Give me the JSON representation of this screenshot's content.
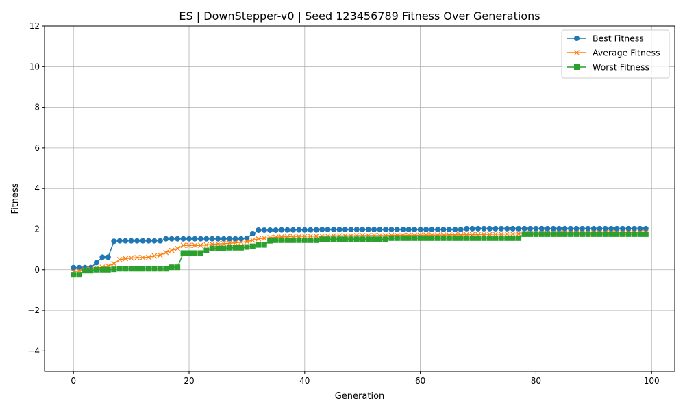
{
  "chart_data": {
    "type": "line",
    "title": "ES | DownStepper-v0 | Seed 123456789 Fitness Over Generations",
    "xlabel": "Generation",
    "ylabel": "Fitness",
    "xlim": [
      -5,
      104
    ],
    "ylim": [
      -5,
      12
    ],
    "xticks": [
      0,
      20,
      40,
      60,
      80,
      100
    ],
    "yticks": [
      -4,
      -2,
      0,
      2,
      4,
      6,
      8,
      10,
      12
    ],
    "grid": true,
    "legend_position": "top-right",
    "x": [
      0,
      1,
      2,
      3,
      4,
      5,
      6,
      7,
      8,
      9,
      10,
      11,
      12,
      13,
      14,
      15,
      16,
      17,
      18,
      19,
      20,
      21,
      22,
      23,
      24,
      25,
      26,
      27,
      28,
      29,
      30,
      31,
      32,
      33,
      34,
      35,
      36,
      37,
      38,
      39,
      40,
      41,
      42,
      43,
      44,
      45,
      46,
      47,
      48,
      49,
      50,
      51,
      52,
      53,
      54,
      55,
      56,
      57,
      58,
      59,
      60,
      61,
      62,
      63,
      64,
      65,
      66,
      67,
      68,
      69,
      70,
      71,
      72,
      73,
      74,
      75,
      76,
      77,
      78,
      79,
      80,
      81,
      82,
      83,
      84,
      85,
      86,
      87,
      88,
      89,
      90,
      91,
      92,
      93,
      94,
      95,
      96,
      97,
      98,
      99
    ],
    "series": [
      {
        "name": "Best Fitness",
        "color": "#1f77b4",
        "marker": "circle",
        "values": [
          0.1,
          0.1,
          0.1,
          0.1,
          0.35,
          0.62,
          0.62,
          1.4,
          1.42,
          1.42,
          1.42,
          1.42,
          1.42,
          1.42,
          1.42,
          1.42,
          1.52,
          1.52,
          1.52,
          1.52,
          1.52,
          1.52,
          1.52,
          1.52,
          1.52,
          1.52,
          1.52,
          1.52,
          1.52,
          1.52,
          1.55,
          1.78,
          1.95,
          1.95,
          1.95,
          1.95,
          1.96,
          1.96,
          1.96,
          1.96,
          1.96,
          1.96,
          1.96,
          1.98,
          1.98,
          1.98,
          1.98,
          1.98,
          1.98,
          1.98,
          1.98,
          1.98,
          1.98,
          1.98,
          1.98,
          1.98,
          1.98,
          1.98,
          1.98,
          1.98,
          1.98,
          1.98,
          1.98,
          1.98,
          1.98,
          1.98,
          1.98,
          1.98,
          2.02,
          2.02,
          2.02,
          2.02,
          2.02,
          2.02,
          2.02,
          2.02,
          2.02,
          2.02,
          2.02,
          2.02,
          2.02,
          2.02,
          2.02,
          2.02,
          2.02,
          2.02,
          2.02,
          2.02,
          2.02,
          2.02,
          2.02,
          2.02,
          2.02,
          2.02,
          2.02,
          2.02,
          2.02,
          2.02,
          2.02,
          2.02
        ]
      },
      {
        "name": "Average Fitness",
        "color": "#ff7f0e",
        "marker": "x",
        "values": [
          -0.1,
          -0.05,
          0.0,
          0.02,
          0.08,
          0.12,
          0.18,
          0.3,
          0.5,
          0.55,
          0.58,
          0.6,
          0.6,
          0.62,
          0.68,
          0.72,
          0.85,
          0.95,
          1.05,
          1.2,
          1.2,
          1.2,
          1.2,
          1.22,
          1.25,
          1.27,
          1.28,
          1.3,
          1.32,
          1.35,
          1.38,
          1.45,
          1.52,
          1.55,
          1.58,
          1.6,
          1.62,
          1.63,
          1.64,
          1.64,
          1.65,
          1.65,
          1.65,
          1.66,
          1.66,
          1.67,
          1.67,
          1.67,
          1.67,
          1.68,
          1.68,
          1.68,
          1.68,
          1.68,
          1.68,
          1.7,
          1.7,
          1.7,
          1.7,
          1.7,
          1.7,
          1.71,
          1.71,
          1.71,
          1.71,
          1.72,
          1.72,
          1.72,
          1.73,
          1.73,
          1.73,
          1.74,
          1.74,
          1.75,
          1.75,
          1.76,
          1.76,
          1.77,
          1.78,
          1.8,
          1.8,
          1.8,
          1.8,
          1.8,
          1.8,
          1.81,
          1.81,
          1.81,
          1.81,
          1.81,
          1.82,
          1.82,
          1.82,
          1.82,
          1.82,
          1.82,
          1.83,
          1.83,
          1.83,
          1.83
        ]
      },
      {
        "name": "Worst Fitness",
        "color": "#2ca02c",
        "marker": "square",
        "values": [
          -0.25,
          -0.25,
          -0.05,
          -0.05,
          0.0,
          0.0,
          0.0,
          0.02,
          0.05,
          0.05,
          0.05,
          0.05,
          0.05,
          0.05,
          0.05,
          0.05,
          0.05,
          0.12,
          0.12,
          0.82,
          0.82,
          0.82,
          0.82,
          0.95,
          1.05,
          1.05,
          1.05,
          1.08,
          1.08,
          1.08,
          1.12,
          1.15,
          1.22,
          1.22,
          1.42,
          1.45,
          1.45,
          1.45,
          1.45,
          1.45,
          1.45,
          1.45,
          1.45,
          1.5,
          1.5,
          1.5,
          1.5,
          1.5,
          1.5,
          1.5,
          1.5,
          1.5,
          1.5,
          1.5,
          1.5,
          1.55,
          1.55,
          1.55,
          1.55,
          1.55,
          1.55,
          1.55,
          1.55,
          1.55,
          1.55,
          1.55,
          1.55,
          1.55,
          1.55,
          1.55,
          1.55,
          1.55,
          1.55,
          1.55,
          1.55,
          1.55,
          1.55,
          1.55,
          1.75,
          1.75,
          1.75,
          1.75,
          1.75,
          1.75,
          1.75,
          1.75,
          1.75,
          1.75,
          1.75,
          1.75,
          1.75,
          1.75,
          1.75,
          1.75,
          1.75,
          1.75,
          1.75,
          1.75,
          1.75,
          1.75
        ]
      }
    ]
  }
}
